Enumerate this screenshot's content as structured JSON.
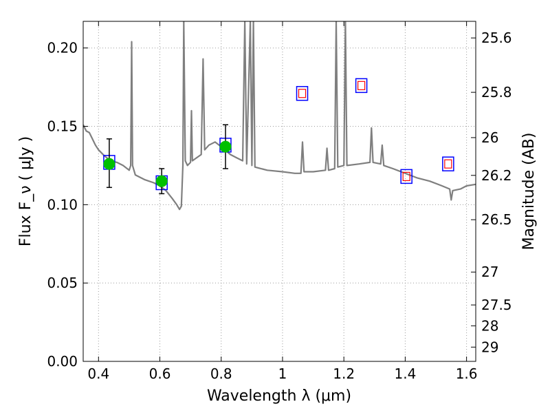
{
  "chart_data": {
    "type": "scatter",
    "title": "",
    "xlabel": "Wavelength  λ (μm)",
    "ylabel": "Flux  F_ν  ( μJy )",
    "ylabel_right": "Magnitude (AB)",
    "xlim": [
      0.35,
      1.63
    ],
    "ylim": [
      0.0,
      0.217
    ],
    "grid": true,
    "x_ticks": [
      0.4,
      0.6,
      0.8,
      1.0,
      1.2,
      1.4,
      1.6
    ],
    "x_tick_labels": [
      "0.4",
      "0.6",
      "0.8",
      "1",
      "1.2",
      "1.4",
      "1.6"
    ],
    "y_ticks": [
      0.0,
      0.05,
      0.1,
      0.15,
      0.2
    ],
    "y_tick_labels": [
      "0.00",
      "0.05",
      "0.10",
      "0.15",
      "0.20"
    ],
    "right_ticks": [
      {
        "label": "25.6",
        "flux": 0.2064
      },
      {
        "label": "25.8",
        "flux": 0.1717
      },
      {
        "label": "26",
        "flux": 0.1428
      },
      {
        "label": "26.2",
        "flux": 0.1187
      },
      {
        "label": "26.5",
        "flux": 0.0904
      },
      {
        "label": "27",
        "flux": 0.057
      },
      {
        "label": "27.5",
        "flux": 0.036
      },
      {
        "label": "28",
        "flux": 0.0227
      },
      {
        "label": "29",
        "flux": 0.0091
      }
    ],
    "colors": {
      "model": "#7f7f7f",
      "detection_fill": "#00c000",
      "model_box": "#0000ff",
      "upper_limit": "#ff0000",
      "errorbar": "#000000",
      "grid": "#9a9a9a"
    },
    "model_spectrum": {
      "name": "",
      "points": [
        [
          0.35,
          0.151
        ],
        [
          0.36,
          0.147
        ],
        [
          0.37,
          0.146
        ],
        [
          0.38,
          0.142
        ],
        [
          0.39,
          0.138
        ],
        [
          0.4,
          0.135
        ],
        [
          0.42,
          0.131
        ],
        [
          0.44,
          0.128
        ],
        [
          0.46,
          0.127
        ],
        [
          0.48,
          0.125
        ],
        [
          0.5,
          0.122
        ],
        [
          0.505,
          0.125
        ],
        [
          0.508,
          0.204
        ],
        [
          0.511,
          0.125
        ],
        [
          0.52,
          0.119
        ],
        [
          0.55,
          0.116
        ],
        [
          0.58,
          0.114
        ],
        [
          0.6,
          0.112
        ],
        [
          0.62,
          0.109
        ],
        [
          0.64,
          0.104
        ],
        [
          0.655,
          0.1
        ],
        [
          0.664,
          0.097
        ],
        [
          0.67,
          0.099
        ],
        [
          0.675,
          0.125
        ],
        [
          0.678,
          0.217
        ],
        [
          0.683,
          0.128
        ],
        [
          0.69,
          0.125
        ],
        [
          0.7,
          0.127
        ],
        [
          0.703,
          0.16
        ],
        [
          0.706,
          0.128
        ],
        [
          0.72,
          0.13
        ],
        [
          0.735,
          0.132
        ],
        [
          0.741,
          0.193
        ],
        [
          0.746,
          0.135
        ],
        [
          0.76,
          0.138
        ],
        [
          0.78,
          0.14
        ],
        [
          0.8,
          0.137
        ],
        [
          0.83,
          0.132
        ],
        [
          0.85,
          0.13
        ],
        [
          0.87,
          0.128
        ],
        [
          0.877,
          0.217
        ],
        [
          0.883,
          0.126
        ],
        [
          0.895,
          0.217
        ],
        [
          0.9,
          0.125
        ],
        [
          0.905,
          0.217
        ],
        [
          0.91,
          0.124
        ],
        [
          0.95,
          0.122
        ],
        [
          1.0,
          0.121
        ],
        [
          1.04,
          0.12
        ],
        [
          1.06,
          0.12
        ],
        [
          1.065,
          0.14
        ],
        [
          1.07,
          0.121
        ],
        [
          1.1,
          0.121
        ],
        [
          1.14,
          0.122
        ],
        [
          1.145,
          0.136
        ],
        [
          1.15,
          0.122
        ],
        [
          1.17,
          0.123
        ],
        [
          1.175,
          0.217
        ],
        [
          1.18,
          0.124
        ],
        [
          1.2,
          0.125
        ],
        [
          1.205,
          0.217
        ],
        [
          1.21,
          0.125
        ],
        [
          1.25,
          0.126
        ],
        [
          1.285,
          0.127
        ],
        [
          1.29,
          0.149
        ],
        [
          1.295,
          0.127
        ],
        [
          1.32,
          0.126
        ],
        [
          1.325,
          0.138
        ],
        [
          1.33,
          0.125
        ],
        [
          1.36,
          0.123
        ],
        [
          1.4,
          0.12
        ],
        [
          1.44,
          0.117
        ],
        [
          1.48,
          0.115
        ],
        [
          1.52,
          0.112
        ],
        [
          1.545,
          0.11
        ],
        [
          1.55,
          0.103
        ],
        [
          1.555,
          0.109
        ],
        [
          1.58,
          0.11
        ],
        [
          1.6,
          0.112
        ],
        [
          1.63,
          0.113
        ]
      ]
    },
    "detections": [
      {
        "x": 0.435,
        "y": 0.126,
        "err_low": 0.015,
        "err_high": 0.016,
        "model": 0.127
      },
      {
        "x": 0.606,
        "y": 0.115,
        "err_low": 0.008,
        "err_high": 0.008,
        "model": 0.114
      },
      {
        "x": 0.814,
        "y": 0.137,
        "err_low": 0.014,
        "err_high": 0.014,
        "model": 0.138
      }
    ],
    "upper_limits": [
      {
        "x": 1.064,
        "y": 0.171
      },
      {
        "x": 1.257,
        "y": 0.176
      },
      {
        "x": 1.404,
        "y": 0.118
      },
      {
        "x": 1.54,
        "y": 0.126
      }
    ]
  }
}
